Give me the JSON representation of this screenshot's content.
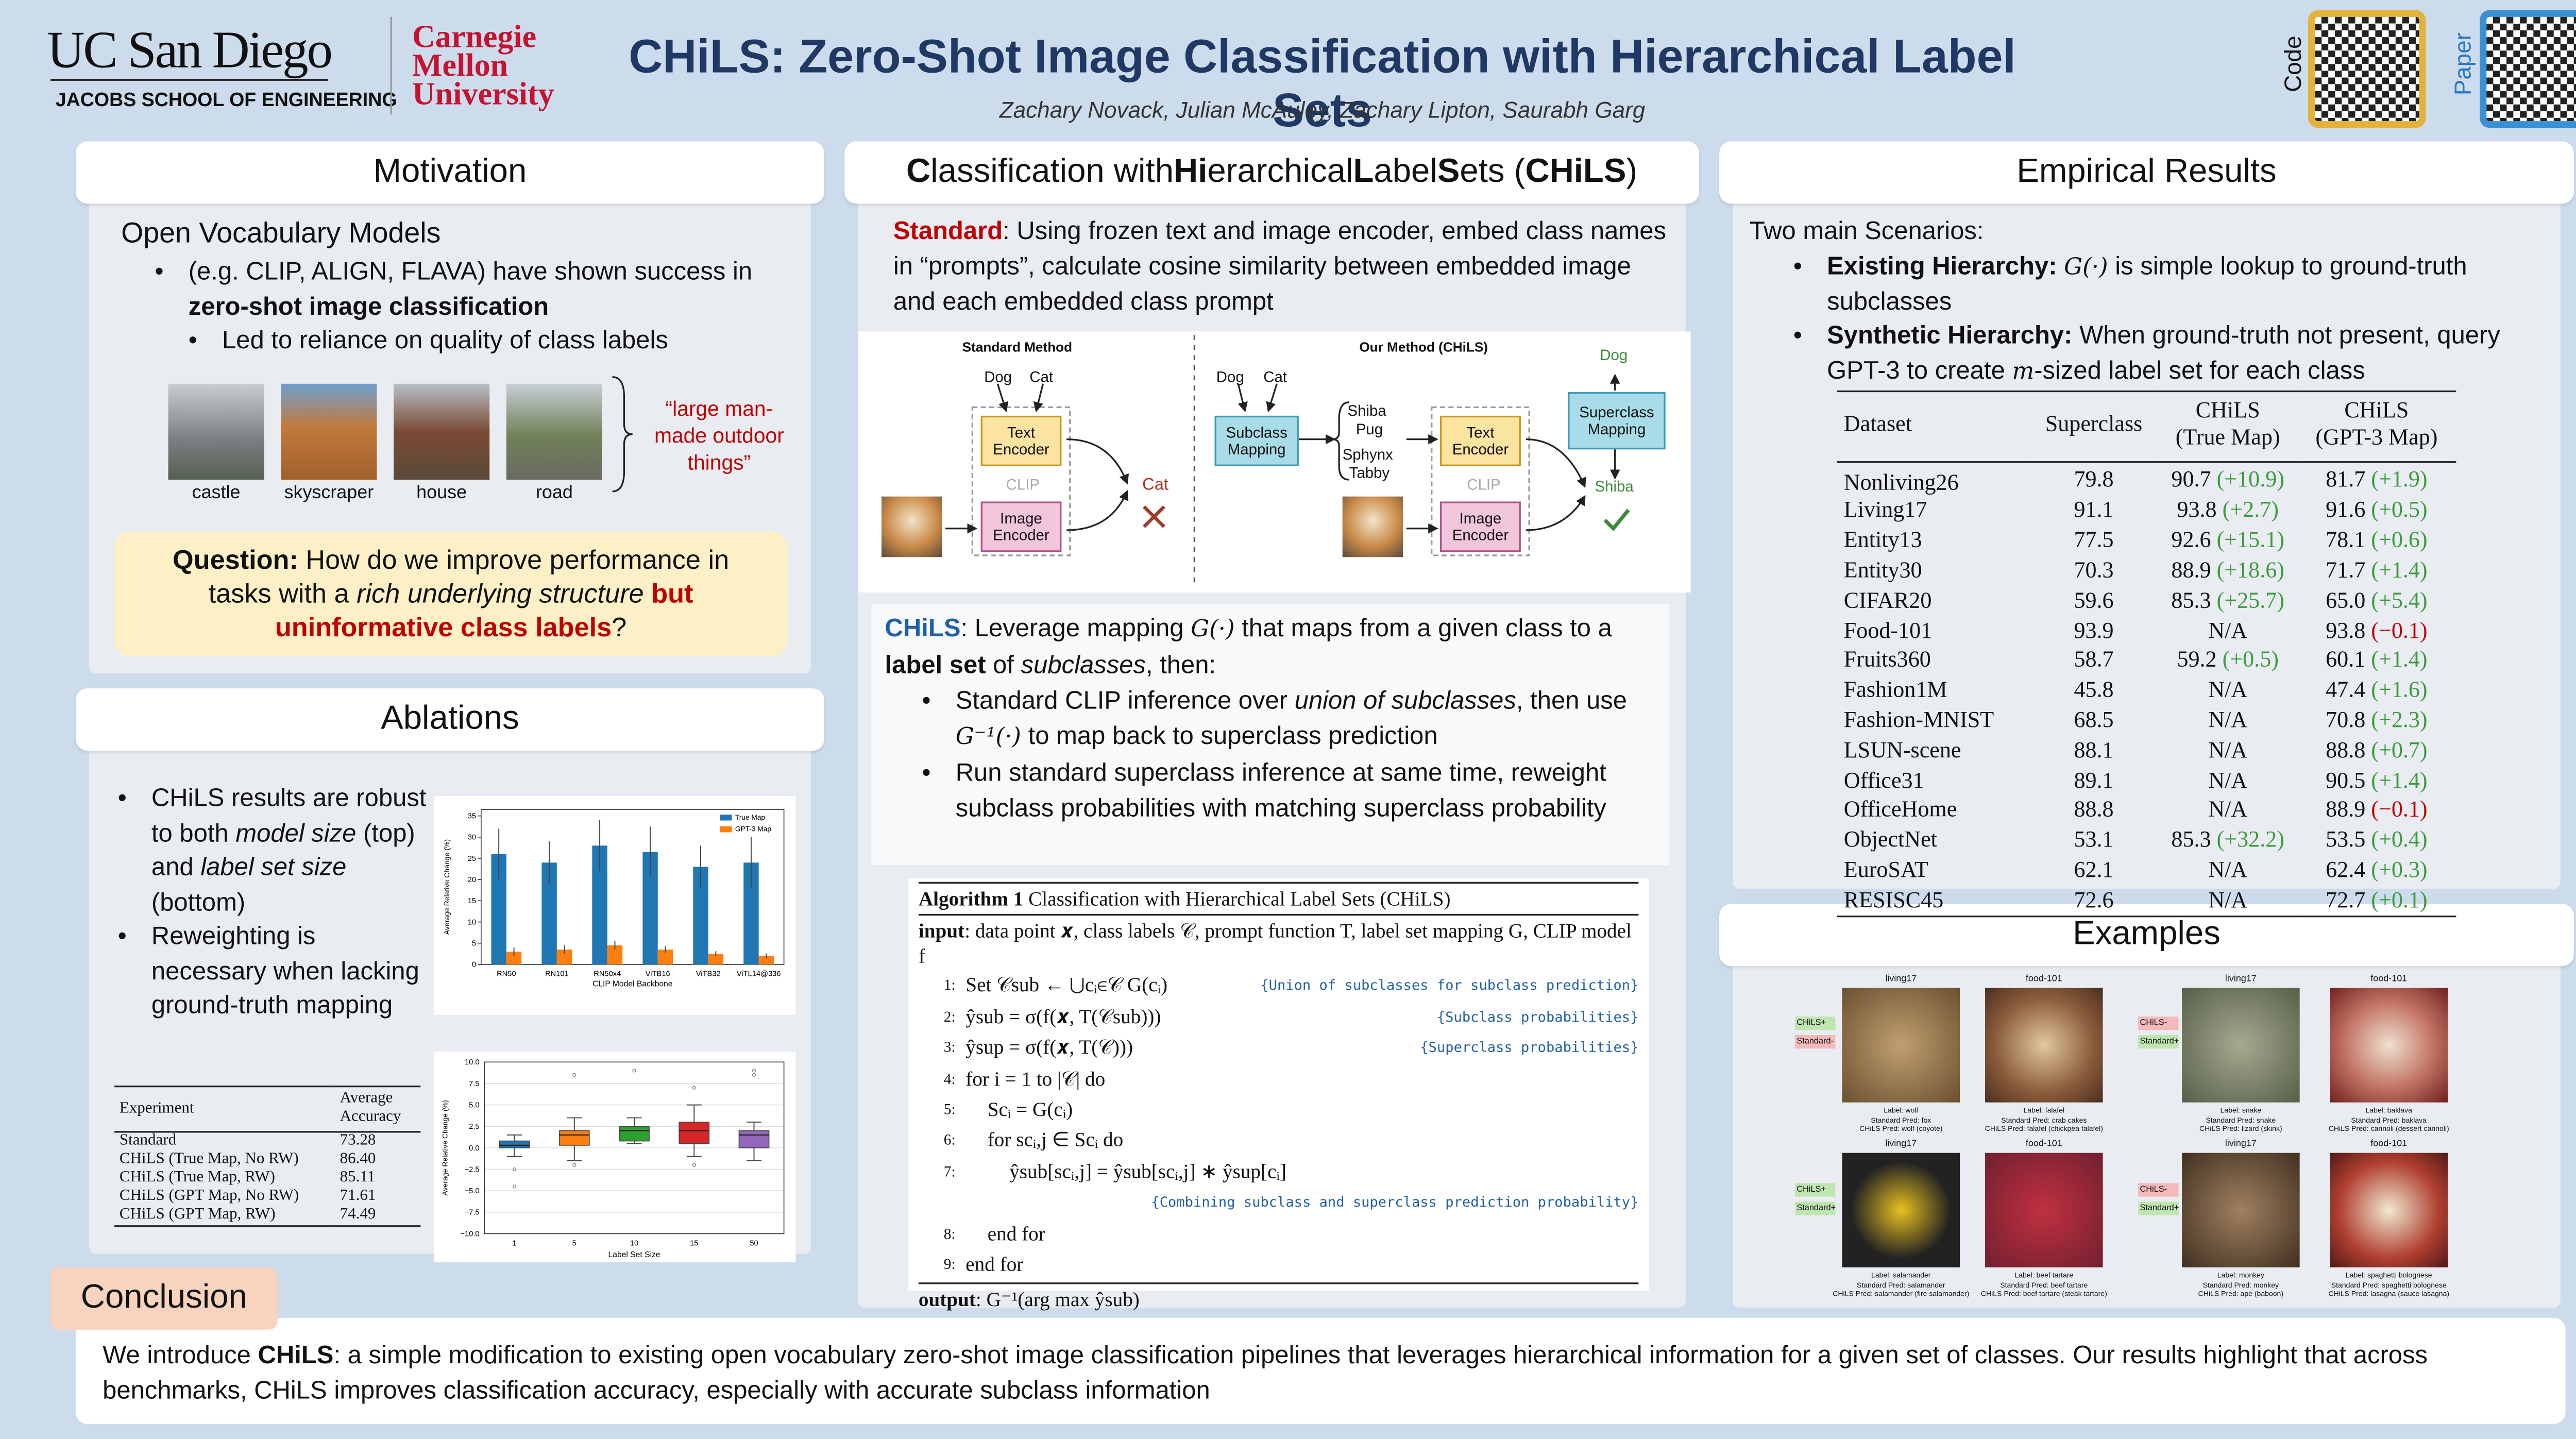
{
  "header": {
    "title": "CHiLS: Zero-Shot Image Classification with Hierarchical Label Sets",
    "authors": "Zachary Novack, Julian McAuley, Zachary Lipton, Saurabh Garg",
    "ucsd": "UC San Diego",
    "jacobs": "JACOBS SCHOOL OF ENGINEERING",
    "cmu": [
      "Carnegie",
      "Mellon",
      "University"
    ],
    "code": "Code",
    "paper": "Paper"
  },
  "motivation": {
    "title": "Motivation",
    "heading": "Open Vocabulary Models",
    "bullet": [
      "(e.g. CLIP, ALIGN, FLAVA) have shown success in ",
      "zero-shot image classification"
    ],
    "sub": "Led to reliance on quality of class labels",
    "images": [
      "castle",
      "skyscraper",
      "house",
      "road"
    ],
    "quote": "“large man-made outdoor things”",
    "question": [
      "Question:",
      " How do we improve performance in tasks with a ",
      "rich underlying structure",
      " but ",
      "uninformative class labels",
      "?"
    ]
  },
  "ablations": {
    "title": "Ablations",
    "bullets": [
      [
        "CHiLS results are robust to both ",
        "model size",
        " (top) and ",
        "label set size",
        " (bottom)"
      ],
      [
        "Reweighting is necessary when lacking ground-truth mapping"
      ]
    ],
    "model_size_chart": {
      "type": "bar",
      "xlabel": "CLIP Model Backbone",
      "ylabel": "Average Relative Change (%)",
      "categories": [
        "RN50",
        "RN101",
        "RN50x4",
        "ViTB16",
        "ViTB32",
        "ViTL14@336"
      ],
      "series": [
        {
          "name": "True Map",
          "color": "#1f77b4",
          "values": [
            26,
            24,
            28,
            26.5,
            23,
            24
          ],
          "errors": [
            6,
            5,
            6,
            6,
            5,
            6
          ]
        },
        {
          "name": "GPT-3 Map",
          "color": "#ff7f0e",
          "values": [
            3,
            3.5,
            4.5,
            3.5,
            2.5,
            2
          ],
          "errors": [
            1,
            1,
            1,
            0.8,
            0.6,
            0.6
          ]
        }
      ],
      "ylim": [
        0,
        36.5
      ],
      "yticks": [
        0,
        5,
        10,
        15,
        20,
        25,
        30,
        35
      ],
      "legend": "upper right"
    },
    "label_set_chart": {
      "type": "box",
      "xlabel": "Label Set Size",
      "ylabel": "Average Relative Change (%)",
      "categories": [
        "1",
        "5",
        "10",
        "15",
        "50"
      ],
      "boxes": [
        {
          "color": "#1f77b4",
          "whislo": -1,
          "q1": 0,
          "med": 0.3,
          "q3": 0.8,
          "whishi": 1.5,
          "fliers": [
            -2.5,
            -4.5
          ]
        },
        {
          "color": "#ff7f0e",
          "whislo": -1.5,
          "q1": 0.3,
          "med": 1.5,
          "q3": 2,
          "whishi": 3.5,
          "fliers": [
            8.5,
            -2
          ]
        },
        {
          "color": "#2ca02c",
          "whislo": 0.5,
          "q1": 0.8,
          "med": 2,
          "q3": 2.5,
          "whishi": 3.5,
          "fliers": [
            9
          ]
        },
        {
          "color": "#d62728",
          "whislo": -1,
          "q1": 0.5,
          "med": 2,
          "q3": 3,
          "whishi": 5,
          "fliers": [
            7,
            -2
          ]
        },
        {
          "color": "#9467bd",
          "whislo": -1.5,
          "q1": 0,
          "med": 1.5,
          "q3": 2,
          "whishi": 3,
          "fliers": [
            8.5,
            9
          ]
        }
      ],
      "ylim": [
        -10,
        10
      ],
      "yticks": [
        {
          "value": -10,
          "label": "−10.0"
        },
        {
          "value": -7.5,
          "label": "−7.5"
        },
        {
          "value": -5,
          "label": "−5.0"
        },
        {
          "value": -2.5,
          "label": "−2.5"
        },
        {
          "value": 0,
          "label": "0.0"
        },
        {
          "value": 2.5,
          "label": "2.5"
        },
        {
          "value": 5,
          "label": "5.0"
        },
        {
          "value": 7.5,
          "label": "7.5"
        },
        {
          "value": 10,
          "label": "10.0"
        }
      ],
      "grid": true
    },
    "table": {
      "header": [
        "Experiment",
        "Average Accuracy"
      ],
      "rows": [
        [
          "Standard",
          "73.28"
        ],
        [
          "CHiLS (True Map, No RW)",
          "86.40"
        ],
        [
          "CHiLS (True Map, RW)",
          "85.11"
        ],
        [
          "CHiLS (GPT Map, No RW)",
          "71.61"
        ],
        [
          "CHiLS (GPT Map, RW)",
          "74.49"
        ]
      ]
    }
  },
  "method": {
    "title": [
      "C",
      "lassification with ",
      "Hi",
      "erarchical ",
      "L",
      "abel ",
      "S",
      "ets (",
      "CHiLS",
      ")"
    ],
    "standard": [
      "Standard",
      ": Using frozen text and image encoder, embed class names in “prompts”, calculate cosine similarity between embedded image and each embedded class prompt"
    ],
    "diagram": {
      "standard_title": "Standard Method",
      "std_dog": "Dog",
      "std_cat": "Cat",
      "std_text_enc": "Text Encoder",
      "std_clip": "CLIP",
      "std_img_enc": "Image Encoder",
      "std_pred": "Cat",
      "ours_title": "Our Method (CHiLS)",
      "ours_dog": "Dog",
      "ours_cat": "Cat",
      "subclass_mapping": "Subclass Mapping",
      "shiba": "Shiba",
      "pug": "Pug",
      "sphynx": "Sphynx",
      "tabby": "Tabby",
      "ours_text_enc": "Text Encoder",
      "ours_clip": "CLIP",
      "ours_img_enc": "Image Encoder",
      "superclass_mapping": "Superclass Mapping",
      "ours_pred": "Dog",
      "ours_sub_pred": "Shiba"
    },
    "chils": [
      "CHiLS",
      ": Leverage mapping ",
      "G(·)",
      " that maps from a given class to a ",
      "label set",
      " of ",
      "subclasses",
      ", then:"
    ],
    "bullets": [
      [
        "Standard CLIP inference over ",
        "union of subclasses",
        ", then use ",
        "G⁻¹(·)",
        " to map back to superclass prediction"
      ],
      [
        "Run standard superclass inference at same time, reweight subclass probabilities with matching superclass probability"
      ]
    ],
    "algorithm": {
      "caption_num": "Algorithm 1",
      "caption": "Classification with Hierarchical Label Sets (CHiLS)",
      "input_kw": "input",
      "input": ": data point 𝒙, class labels 𝒞, prompt function T, label set mapping G, CLIP model f",
      "lines": [
        {
          "num": "1:",
          "code": "Set 𝒞sub ← ⋃cᵢ∈𝒞 G(cᵢ)",
          "comment": "{Union of subclasses for subclass prediction}"
        },
        {
          "num": "2:",
          "code": "ŷsub = σ(f(𝒙, T(𝒞sub)))",
          "comment": "{Subclass probabilities}"
        },
        {
          "num": "3:",
          "code": "ŷsup = σ(f(𝒙, T(𝒞)))",
          "comment": "{Superclass probabilities}"
        },
        {
          "num": "4:",
          "code": "for i = 1 to |𝒞| do"
        },
        {
          "num": "5:",
          "code": "Scᵢ = G(cᵢ)"
        },
        {
          "num": "6:",
          "code": "for scᵢ,j ∈ Scᵢ do"
        },
        {
          "num": "7:",
          "code": "ŷsub[scᵢ,j] = ŷsub[scᵢ,j] ∗ ŷsup[cᵢ]",
          "comment": "{Combining subclass and superclass prediction probability}"
        },
        {
          "num": "8:",
          "code": "end for"
        },
        {
          "num": "9:",
          "code": "end for"
        }
      ],
      "output_kw": "output",
      "output": ": G⁻¹(arg max ŷsub)"
    }
  },
  "empirical": {
    "title": "Empirical Results",
    "intro": "Two main Scenarios:",
    "bullets": [
      [
        "Existing Hierarchy:",
        " ",
        "G(·)",
        " is simple lookup to ground-truth subclasses"
      ],
      [
        "Synthetic Hierarchy:",
        " When ground-truth not present, query GPT-3 to create ",
        "m",
        "-sized label set for each class"
      ]
    ],
    "table": {
      "header": [
        "Dataset",
        "Superclass",
        "CHiLS",
        "CHiLS"
      ],
      "subheader": [
        "(True Map)",
        "(GPT-3 Map)"
      ],
      "rows": [
        [
          "Nonliving26",
          "79.8",
          "90.7",
          "(+10.9)",
          "81.7",
          "(+1.9)"
        ],
        [
          "Living17",
          "91.1",
          "93.8",
          "(+2.7)",
          "91.6",
          "(+0.5)"
        ],
        [
          "Entity13",
          "77.5",
          "92.6",
          "(+15.1)",
          "78.1",
          "(+0.6)"
        ],
        [
          "Entity30",
          "70.3",
          "88.9",
          "(+18.6)",
          "71.7",
          "(+1.4)"
        ],
        [
          "CIFAR20",
          "59.6",
          "85.3",
          "(+25.7)",
          "65.0",
          "(+5.4)"
        ],
        [
          "Food-101",
          "93.9",
          "N/A",
          null,
          "93.8",
          "(−0.1)"
        ],
        [
          "Fruits360",
          "58.7",
          "59.2",
          "(+0.5)",
          "60.1",
          "(+1.4)"
        ],
        [
          "Fashion1M",
          "45.8",
          "N/A",
          null,
          "47.4",
          "(+1.6)"
        ],
        [
          "Fashion-MNIST",
          "68.5",
          "N/A",
          null,
          "70.8",
          "(+2.3)"
        ],
        [
          "LSUN-scene",
          "88.1",
          "N/A",
          null,
          "88.8",
          "(+0.7)"
        ],
        [
          "Office31",
          "89.1",
          "N/A",
          null,
          "90.5",
          "(+1.4)"
        ],
        [
          "OfficeHome",
          "88.8",
          "N/A",
          null,
          "88.9",
          "(−0.1)"
        ],
        [
          "ObjectNet",
          "53.1",
          "85.3",
          "(+32.2)",
          "53.5",
          "(+0.4)"
        ],
        [
          "EuroSAT",
          "62.1",
          "N/A",
          null,
          "62.4",
          "(+0.3)"
        ],
        [
          "RESISC45",
          "72.6",
          "N/A",
          null,
          "72.7",
          "(+0.1)"
        ]
      ]
    }
  },
  "examples": {
    "title": "Examples",
    "legends": [
      [
        "CHiLS+",
        "Standard-"
      ],
      [
        "CHiLS-",
        "Standard+"
      ],
      [
        "CHiLS+",
        "Standard+"
      ],
      [
        "CHiLS-",
        "Standard+"
      ]
    ],
    "panels": [
      {
        "dataset": "living17",
        "label": "Label: wolf",
        "standard": "Standard Pred: fox",
        "chils": "CHiLS Pred: wolf (coyote)"
      },
      {
        "dataset": "food-101",
        "label": "Label: falafel",
        "standard": "Standard Pred: crab cakes",
        "chils": "CHiLS Pred: falafel (chickpea falafel)"
      },
      {
        "dataset": "living17",
        "label": "Label: snake",
        "standard": "Standard Pred: snake",
        "chils": "CHiLS Pred: lizard (skink)"
      },
      {
        "dataset": "food-101",
        "label": "Label: baklava",
        "standard": "Standard Pred: baklava",
        "chils": "CHiLS Pred: cannoli (dessert cannoli)"
      },
      {
        "dataset": "living17",
        "label": "Label: salamander",
        "standard": "Standard Pred: salamander",
        "chils": "CHiLS Pred: salamander (fire salamander)"
      },
      {
        "dataset": "food-101",
        "label": "Label: beef tartare",
        "standard": "Standard Pred: beef tartare",
        "chils": "CHiLS Pred: beef tartare (steak tartare)"
      },
      {
        "dataset": "living17",
        "label": "Label: monkey",
        "standard": "Standard Pred: monkey",
        "chils": "CHiLS Pred: ape (baboon)"
      },
      {
        "dataset": "food-101",
        "label": "Label: spaghetti bolognese",
        "standard": "Standard Pred: spaghetti bolognese",
        "chils": "CHiLS Pred: lasagna (sauce lasagna)"
      }
    ]
  },
  "conclusion": {
    "title": "Conclusion",
    "text": [
      "We introduce ",
      "CHiLS",
      ": a simple modification to existing open vocabulary zero-shot image classification pipelines that leverages hierarchical information for a given set of classes. Our results highlight that across benchmarks, CHiLS improves classification accuracy, especially with accurate subclass information"
    ]
  }
}
